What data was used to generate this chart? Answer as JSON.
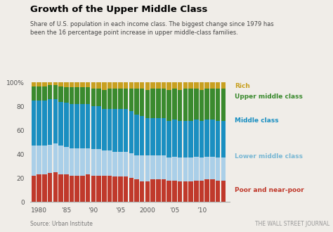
{
  "title": "Growth of the Upper Middle Class",
  "subtitle": "Share of U.S. population in each income class. The biggest change since 1979 has\nbeen the 16 percentage point increase in upper middle-class families.",
  "source": "Source: Urban Institute",
  "credit": "THE WALL STREET JOURNAL",
  "years": [
    1979,
    1980,
    1981,
    1982,
    1983,
    1984,
    1985,
    1986,
    1987,
    1988,
    1989,
    1990,
    1991,
    1992,
    1993,
    1994,
    1995,
    1996,
    1997,
    1998,
    1999,
    2000,
    2001,
    2002,
    2003,
    2004,
    2005,
    2006,
    2007,
    2008,
    2009,
    2010,
    2011,
    2012,
    2013,
    2014
  ],
  "poor": [
    22,
    23,
    23,
    24,
    25,
    23,
    23,
    22,
    22,
    22,
    23,
    22,
    22,
    22,
    22,
    21,
    21,
    21,
    20,
    19,
    17,
    17,
    19,
    19,
    19,
    18,
    18,
    17,
    17,
    17,
    18,
    18,
    19,
    19,
    18,
    18
  ],
  "lower_middle": [
    25,
    24,
    24,
    24,
    24,
    24,
    23,
    23,
    23,
    23,
    22,
    22,
    22,
    21,
    21,
    21,
    21,
    21,
    21,
    20,
    22,
    22,
    20,
    20,
    20,
    19,
    20,
    20,
    20,
    20,
    20,
    19,
    19,
    19,
    19,
    19
  ],
  "middle": [
    38,
    38,
    38,
    38,
    37,
    37,
    37,
    37,
    37,
    37,
    37,
    36,
    36,
    35,
    35,
    36,
    36,
    36,
    35,
    34,
    33,
    31,
    31,
    31,
    31,
    31,
    31,
    31,
    31,
    31,
    31,
    31,
    31,
    31,
    31,
    31
  ],
  "upper_middle": [
    12,
    12,
    12,
    12,
    12,
    13,
    13,
    14,
    14,
    14,
    14,
    15,
    15,
    16,
    17,
    17,
    17,
    17,
    19,
    22,
    23,
    24,
    25,
    25,
    25,
    26,
    26,
    26,
    27,
    27,
    26,
    26,
    26,
    26,
    27,
    27
  ],
  "rich": [
    3,
    3,
    3,
    2,
    2,
    3,
    4,
    4,
    4,
    4,
    4,
    5,
    5,
    6,
    5,
    5,
    5,
    5,
    5,
    5,
    5,
    6,
    5,
    5,
    5,
    6,
    5,
    6,
    5,
    5,
    5,
    6,
    5,
    5,
    5,
    5
  ],
  "color_poor": "#c0392b",
  "color_lower_middle": "#aacfe8",
  "color_middle": "#1a8fc1",
  "color_upper_middle": "#3a8a2e",
  "color_rich": "#c8a020",
  "bg_color": "#f0ede8",
  "label_poor": "Poor and near-poor",
  "label_lower_middle": "Lower middle class",
  "label_middle": "Middle class",
  "label_upper_middle": "Upper middle class",
  "label_rich": "Rich",
  "yticks": [
    0,
    20,
    40,
    60,
    80,
    100
  ],
  "xtick_labels": [
    "1980",
    "’85",
    "’90",
    "’95",
    "2000",
    "’05",
    "’10"
  ],
  "xtick_positions": [
    1980,
    1985,
    1990,
    1995,
    2000,
    2005,
    2010
  ]
}
